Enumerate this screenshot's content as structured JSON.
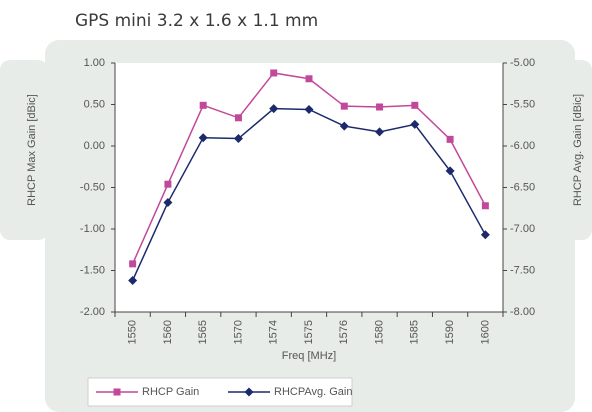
{
  "chart_data": {
    "type": "line",
    "title": "GPS mini 3.2 x 1.6 x 1.1 mm",
    "xlabel": "Freq [MHz]",
    "ylabel": "RHCP Max Gain [dBic]",
    "y2label": "RHCP Avg. Gain [dBic]",
    "categories": [
      "1550",
      "1560",
      "1565",
      "1570",
      "1574",
      "1575",
      "1576",
      "1580",
      "1585",
      "1590",
      "1600"
    ],
    "series": [
      {
        "name": "RHCP Gain",
        "color": "#c2499a",
        "marker": "square",
        "values": [
          -1.42,
          -0.46,
          0.49,
          0.34,
          0.88,
          0.81,
          0.48,
          0.47,
          0.49,
          0.08,
          -0.72
        ]
      },
      {
        "name": "RHCPAvg. Gain",
        "color": "#1c2a6b",
        "marker": "diamond",
        "axis": "y2",
        "values": [
          -7.62,
          -6.68,
          -5.9,
          -5.91,
          -5.55,
          -5.56,
          -5.76,
          -5.83,
          -5.74,
          -6.3,
          -7.07
        ]
      }
    ],
    "ylim": [
      -2,
      1
    ],
    "yticks": [
      {
        "value": -2,
        "label": "-2.00"
      },
      {
        "value": -1.5,
        "label": "-1.50"
      },
      {
        "value": -1,
        "label": "-1.00"
      },
      {
        "value": -0.5,
        "label": "-0.50"
      },
      {
        "value": 0,
        "label": "0.00"
      },
      {
        "value": 0.5,
        "label": "0.50"
      },
      {
        "value": 1,
        "label": "1.00"
      }
    ],
    "y2lim": [
      -8,
      -5
    ],
    "y2ticks": [
      {
        "value": -8,
        "label": "-8.00"
      },
      {
        "value": -7.5,
        "label": "-7.50"
      },
      {
        "value": -7,
        "label": "-7.00"
      },
      {
        "value": -6.5,
        "label": "-6.50"
      },
      {
        "value": -6,
        "label": "-6.00"
      },
      {
        "value": -5.5,
        "label": "-5.50"
      },
      {
        "value": -5,
        "label": "-5.00"
      }
    ],
    "grid": false,
    "legend": "bottom"
  }
}
